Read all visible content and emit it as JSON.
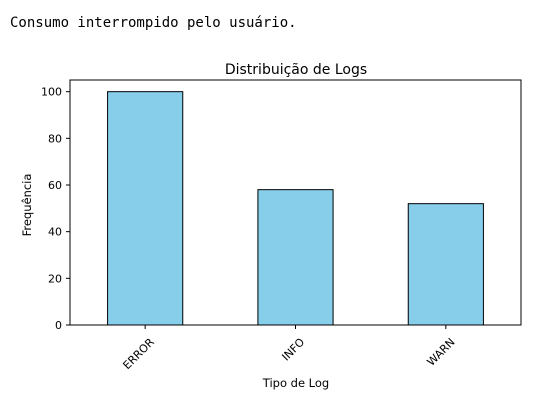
{
  "output": {
    "message": "Consumo interrompido pelo usuário."
  },
  "chart_data": {
    "type": "bar",
    "title": "Distribuição de Logs",
    "xlabel": "Tipo de Log",
    "ylabel": "Frequência",
    "categories": [
      "ERROR",
      "INFO",
      "WARN"
    ],
    "values": [
      100,
      58,
      52
    ],
    "ylim": [
      0,
      105
    ],
    "yticks": [
      0,
      20,
      40,
      60,
      80,
      100
    ],
    "bar_color": "#87CEEB",
    "bar_edge_color": "#000000",
    "grid": false,
    "legend": "none"
  }
}
